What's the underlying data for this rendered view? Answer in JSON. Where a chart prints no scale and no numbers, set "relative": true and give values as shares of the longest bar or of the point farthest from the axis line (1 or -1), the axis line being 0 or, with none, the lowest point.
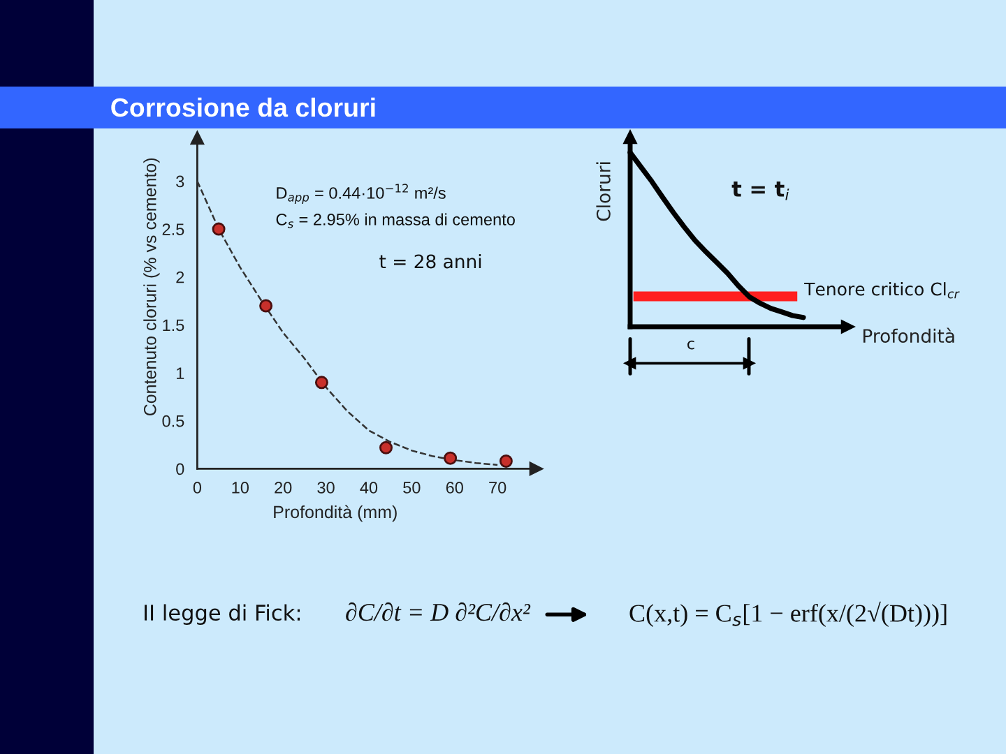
{
  "chart_data": [
    {
      "type": "scatter",
      "title": "Corrosione da cloruri",
      "xlabel": "Profondità (mm)",
      "ylabel": "Contenuto cloruri (% vs cemento)",
      "xlim": [
        0,
        79
      ],
      "ylim": [
        0,
        3.45
      ],
      "xticks": [
        0,
        10,
        20,
        30,
        40,
        50,
        60,
        70
      ],
      "yticks": [
        0,
        0.5,
        1,
        1.5,
        2,
        2.5,
        3
      ],
      "series": [
        {
          "type": "line",
          "color": "#333333",
          "line_style": "dashed",
          "x": [
            0,
            5,
            10,
            15,
            20,
            25,
            30,
            35,
            40,
            45,
            50,
            55,
            60,
            65,
            70
          ],
          "values": [
            3.0,
            2.5,
            2.1,
            1.75,
            1.42,
            1.15,
            0.85,
            0.6,
            0.4,
            0.28,
            0.19,
            0.13,
            0.09,
            0.06,
            0.04
          ]
        },
        {
          "type": "scatter",
          "color": "#c8302b",
          "marker": "circle",
          "x": [
            5,
            16,
            29,
            44,
            59,
            72
          ],
          "values": [
            2.5,
            1.7,
            0.9,
            0.22,
            0.11,
            0.08
          ]
        }
      ],
      "annotations": [
        "D$_{app}$ = 0.44·10$^{−12}$ m²/s",
        "C$_{s}$ = 2.95% in massa di cemento",
        "t = 28 anni"
      ]
    },
    {
      "type": "line",
      "relative": true,
      "categories": [
        null,
        null,
        null,
        null,
        null,
        null,
        null,
        null,
        null,
        null,
        null,
        null,
        null,
        null,
        null,
        null,
        null
      ],
      "values": [
        1.0,
        0.917,
        0.834,
        0.743,
        0.655,
        0.572,
        0.495,
        0.43,
        0.369,
        0.307,
        0.235,
        0.172,
        0.135,
        0.105,
        0.085,
        0.064,
        0.053
      ],
      "color": "#000000",
      "xlabel": "Profondità",
      "ylabel": "Cloruri",
      "ref_lines": [
        {
          "axis": "y",
          "value": 0.174,
          "label": "Tenore critico Cl$_{cr}$",
          "color": "#ff1f1f"
        }
      ],
      "annotations": [
        "t = t$_{i}$",
        "c"
      ]
    },
    {
      "type": "other",
      "annotations": [
        "II legge di Fick:",
        "∂C/∂t = D ∂²C/∂x²",
        "C(x,t) = C$_{s}$[1 − erf(x/(2√(Dt)))]"
      ]
    }
  ]
}
